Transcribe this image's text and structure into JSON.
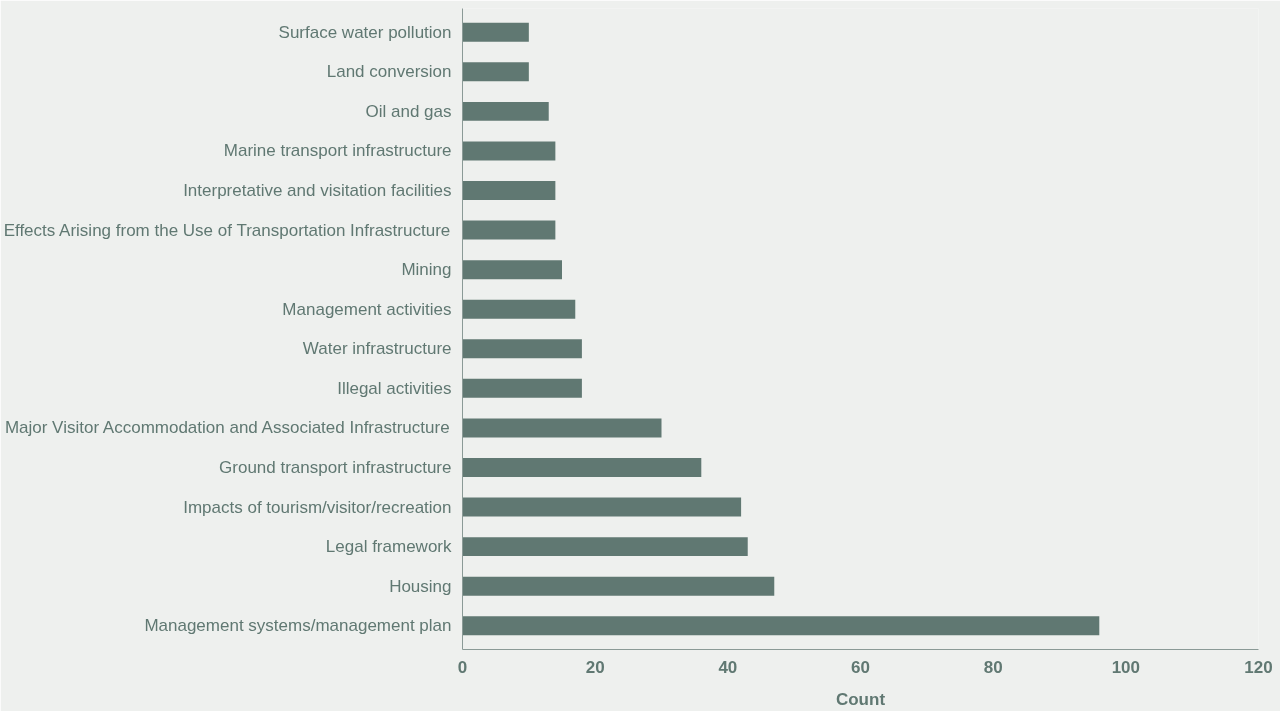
{
  "chart_data": {
    "type": "bar",
    "orientation": "horizontal",
    "xlabel": "Count",
    "categories": [
      "Surface water pollution",
      "Land conversion",
      "Oil and gas",
      "Marine transport infrastructure",
      "Interpretative and visitation facilities",
      "Effects Arising from the Use of Transportation Infrastructure",
      "Mining",
      "Management activities",
      "Water infrastructure",
      "Illegal activities",
      "Major Visitor Accommodation and Associated Infrastructure",
      "Ground transport infrastructure",
      "Impacts of tourism/visitor/recreation",
      "Legal framework",
      "Housing",
      "Management systems/management plan"
    ],
    "values": [
      10,
      10,
      13,
      14,
      14,
      14,
      15,
      17,
      18,
      18,
      30,
      36,
      42,
      43,
      47,
      96
    ],
    "color": "#607872",
    "xlim": [
      0,
      120
    ],
    "xticks": [
      0,
      20,
      40,
      60,
      80,
      100,
      120
    ],
    "grid": false
  }
}
